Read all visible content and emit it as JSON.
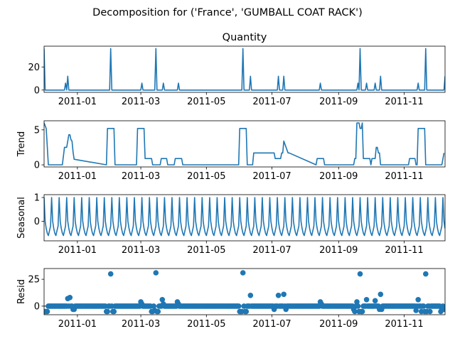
{
  "suptitle": "Decomposition for ('France', 'GUMBALL COAT RACK')",
  "chart_data": [
    {
      "type": "line",
      "title": "Quantity",
      "ylabel": "",
      "ylim": [
        -2,
        38
      ],
      "yticks": [
        0,
        20
      ],
      "color": "#1f77b4",
      "x_dates": [
        "2010-12-01",
        "2010-12-02",
        "2010-12-03",
        "2010-12-04",
        "2010-12-20",
        "2010-12-21",
        "2010-12-22",
        "2010-12-23",
        "2010-12-24",
        "2011-01-31",
        "2011-02-01",
        "2011-02-02",
        "2011-02-03",
        "2011-02-04",
        "2011-03-01",
        "2011-03-02",
        "2011-03-03",
        "2011-03-14",
        "2011-03-15",
        "2011-03-16",
        "2011-03-21",
        "2011-03-22",
        "2011-03-23",
        "2011-04-04",
        "2011-04-05",
        "2011-04-06",
        "2011-06-03",
        "2011-06-04",
        "2011-06-05",
        "2011-06-10",
        "2011-06-11",
        "2011-06-12",
        "2011-07-06",
        "2011-07-07",
        "2011-07-08",
        "2011-07-11",
        "2011-07-12",
        "2011-07-13",
        "2011-08-14",
        "2011-08-15",
        "2011-08-16",
        "2011-09-18",
        "2011-09-19",
        "2011-09-20",
        "2011-09-21",
        "2011-09-22",
        "2011-09-23",
        "2011-09-26",
        "2011-09-27",
        "2011-09-28",
        "2011-10-04",
        "2011-10-05",
        "2011-10-06",
        "2011-10-09",
        "2011-10-10",
        "2011-10-11",
        "2011-11-13",
        "2011-11-14",
        "2011-11-15",
        "2011-11-20",
        "2011-11-21",
        "2011-11-22",
        "2011-12-08",
        "2011-12-09"
      ],
      "values": [
        36,
        0,
        0,
        0,
        0,
        6,
        0,
        12,
        0,
        0,
        36,
        0,
        0,
        0,
        0,
        6,
        0,
        0,
        36,
        0,
        0,
        6,
        0,
        0,
        6,
        0,
        0,
        36,
        0,
        0,
        12,
        0,
        0,
        12,
        0,
        0,
        12,
        0,
        0,
        6,
        0,
        0,
        6,
        0,
        36,
        0,
        0,
        0,
        6,
        0,
        0,
        6,
        0,
        0,
        12,
        0,
        0,
        6,
        0,
        0,
        36,
        0,
        0,
        12
      ]
    },
    {
      "type": "line",
      "title": "",
      "ylabel": "Trend",
      "ylim": [
        -0.3,
        6.3
      ],
      "yticks": [
        0,
        5
      ],
      "color": "#1f77b4",
      "x_dates": [
        "2010-12-01",
        "2010-12-03",
        "2010-12-05",
        "2010-12-18",
        "2010-12-20",
        "2010-12-22",
        "2010-12-23",
        "2010-12-24",
        "2010-12-25",
        "2010-12-26",
        "2010-12-27",
        "2010-12-28",
        "2010-12-29",
        "2011-01-28",
        "2011-01-29",
        "2011-02-04",
        "2011-02-05",
        "2011-02-25",
        "2011-02-26",
        "2011-03-04",
        "2011-03-05",
        "2011-03-11",
        "2011-03-12",
        "2011-03-19",
        "2011-03-20",
        "2011-03-25",
        "2011-03-26",
        "2011-04-01",
        "2011-04-02",
        "2011-04-08",
        "2011-04-09",
        "2011-05-31",
        "2011-06-01",
        "2011-06-07",
        "2011-06-08",
        "2011-06-13",
        "2011-06-14",
        "2011-07-03",
        "2011-07-04",
        "2011-07-09",
        "2011-07-10",
        "2011-07-11",
        "2011-07-12",
        "2011-07-16",
        "2011-07-17",
        "2011-08-11",
        "2011-08-12",
        "2011-08-18",
        "2011-08-19",
        "2011-09-15",
        "2011-09-16",
        "2011-09-17",
        "2011-09-18",
        "2011-09-20",
        "2011-09-21",
        "2011-09-22",
        "2011-09-23",
        "2011-09-24",
        "2011-09-25",
        "2011-09-30",
        "2011-10-01",
        "2011-10-02",
        "2011-10-05",
        "2011-10-06",
        "2011-10-07",
        "2011-10-08",
        "2011-10-09",
        "2011-10-10",
        "2011-11-05",
        "2011-11-06",
        "2011-11-11",
        "2011-11-12",
        "2011-11-13",
        "2011-11-14",
        "2011-11-15",
        "2011-11-16",
        "2011-11-17",
        "2011-11-20",
        "2011-11-21",
        "2011-11-25",
        "2011-11-26",
        "2011-11-27",
        "2011-12-05",
        "2011-12-06",
        "2011-12-08"
      ],
      "values": [
        6.0,
        5.2,
        0.0,
        0.0,
        2.5,
        2.5,
        3.4,
        4.3,
        4.3,
        3.6,
        3.4,
        1.8,
        0.8,
        0.0,
        5.2,
        5.2,
        0.0,
        0.0,
        5.2,
        5.2,
        0.9,
        0.9,
        0.0,
        0.0,
        0.9,
        0.9,
        0.0,
        0.0,
        0.9,
        0.9,
        0.0,
        0.0,
        5.2,
        5.2,
        0.0,
        0.0,
        1.7,
        1.7,
        0.9,
        0.9,
        1.7,
        1.7,
        3.4,
        1.7,
        1.7,
        0.0,
        0.9,
        0.9,
        0.0,
        0.0,
        0.9,
        0.9,
        6.0,
        6.0,
        5.2,
        5.2,
        6.0,
        0.9,
        0.9,
        0.9,
        0.0,
        0.9,
        0.9,
        2.5,
        2.5,
        1.7,
        1.7,
        0.0,
        0.0,
        0.9,
        0.9,
        0.0,
        0.0,
        5.2,
        5.2,
        5.2,
        5.2,
        5.2,
        0.0,
        0.0,
        0.0,
        0.0,
        0.0,
        0.0,
        1.7
      ]
    },
    {
      "type": "line",
      "title": "",
      "ylabel": "Seasonal",
      "ylim": [
        -0.82,
        1.12
      ],
      "yticks": [
        0,
        1
      ],
      "color": "#1f77b4",
      "period_days": 7,
      "pattern": [
        1.0,
        0.0,
        -0.3,
        -0.5,
        -0.6,
        -0.4,
        -0.2
      ]
    },
    {
      "type": "scatter",
      "title": "",
      "ylabel": "Resid",
      "ylim": [
        -8,
        35
      ],
      "yticks": [
        0,
        25
      ],
      "color": "#1f77b4",
      "baseline": 0,
      "points": [
        [
          "2010-12-01",
          -5
        ],
        [
          "2010-12-02",
          -5
        ],
        [
          "2010-12-03",
          -5
        ],
        [
          "2010-12-04",
          -5
        ],
        [
          "2010-12-23",
          7
        ],
        [
          "2010-12-25",
          8
        ],
        [
          "2010-12-28",
          -3
        ],
        [
          "2010-12-29",
          -3
        ],
        [
          "2011-01-28",
          -5
        ],
        [
          "2011-01-29",
          -5
        ],
        [
          "2011-02-01",
          30
        ],
        [
          "2011-02-03",
          -5
        ],
        [
          "2011-02-04",
          -5
        ],
        [
          "2011-03-01",
          4
        ],
        [
          "2011-03-02",
          2
        ],
        [
          "2011-03-11",
          -5
        ],
        [
          "2011-03-12",
          -5
        ],
        [
          "2011-03-14",
          -4
        ],
        [
          "2011-03-15",
          31
        ],
        [
          "2011-03-16",
          -5
        ],
        [
          "2011-03-17",
          -5
        ],
        [
          "2011-03-21",
          6
        ],
        [
          "2011-03-22",
          2
        ],
        [
          "2011-04-04",
          4
        ],
        [
          "2011-04-05",
          2
        ],
        [
          "2011-06-01",
          -5
        ],
        [
          "2011-06-02",
          -5
        ],
        [
          "2011-06-03",
          -5
        ],
        [
          "2011-06-04",
          31
        ],
        [
          "2011-06-06",
          -5
        ],
        [
          "2011-06-07",
          -5
        ],
        [
          "2011-06-11",
          10
        ],
        [
          "2011-07-03",
          -3
        ],
        [
          "2011-07-07",
          10
        ],
        [
          "2011-07-12",
          11
        ],
        [
          "2011-07-14",
          -3
        ],
        [
          "2011-08-15",
          4
        ],
        [
          "2011-08-16",
          2
        ],
        [
          "2011-09-15",
          -3
        ],
        [
          "2011-09-16",
          -5
        ],
        [
          "2011-09-18",
          4
        ],
        [
          "2011-09-20",
          -5
        ],
        [
          "2011-09-21",
          30
        ],
        [
          "2011-09-22",
          -5
        ],
        [
          "2011-09-23",
          -5
        ],
        [
          "2011-09-27",
          6
        ],
        [
          "2011-10-05",
          5
        ],
        [
          "2011-10-09",
          -3
        ],
        [
          "2011-10-10",
          11
        ],
        [
          "2011-10-11",
          -3
        ],
        [
          "2011-11-12",
          -4
        ],
        [
          "2011-11-14",
          6
        ],
        [
          "2011-11-17",
          -5
        ],
        [
          "2011-11-20",
          -5
        ],
        [
          "2011-11-21",
          30
        ],
        [
          "2011-11-22",
          -5
        ],
        [
          "2011-11-25",
          -5
        ],
        [
          "2011-12-05",
          -5
        ],
        [
          "2011-12-06",
          -3
        ],
        [
          "2011-12-08",
          -3
        ],
        [
          "2011-12-09",
          -3
        ]
      ]
    }
  ],
  "x_axis": {
    "range": [
      "2010-12-01",
      "2011-12-09"
    ],
    "tick_dates": [
      "2011-01-01",
      "2011-03-01",
      "2011-05-01",
      "2011-07-01",
      "2011-09-01",
      "2011-11-01"
    ],
    "tick_labels": [
      "2011-01",
      "2011-03",
      "2011-05",
      "2011-07",
      "2011-09",
      "2011-11"
    ]
  }
}
